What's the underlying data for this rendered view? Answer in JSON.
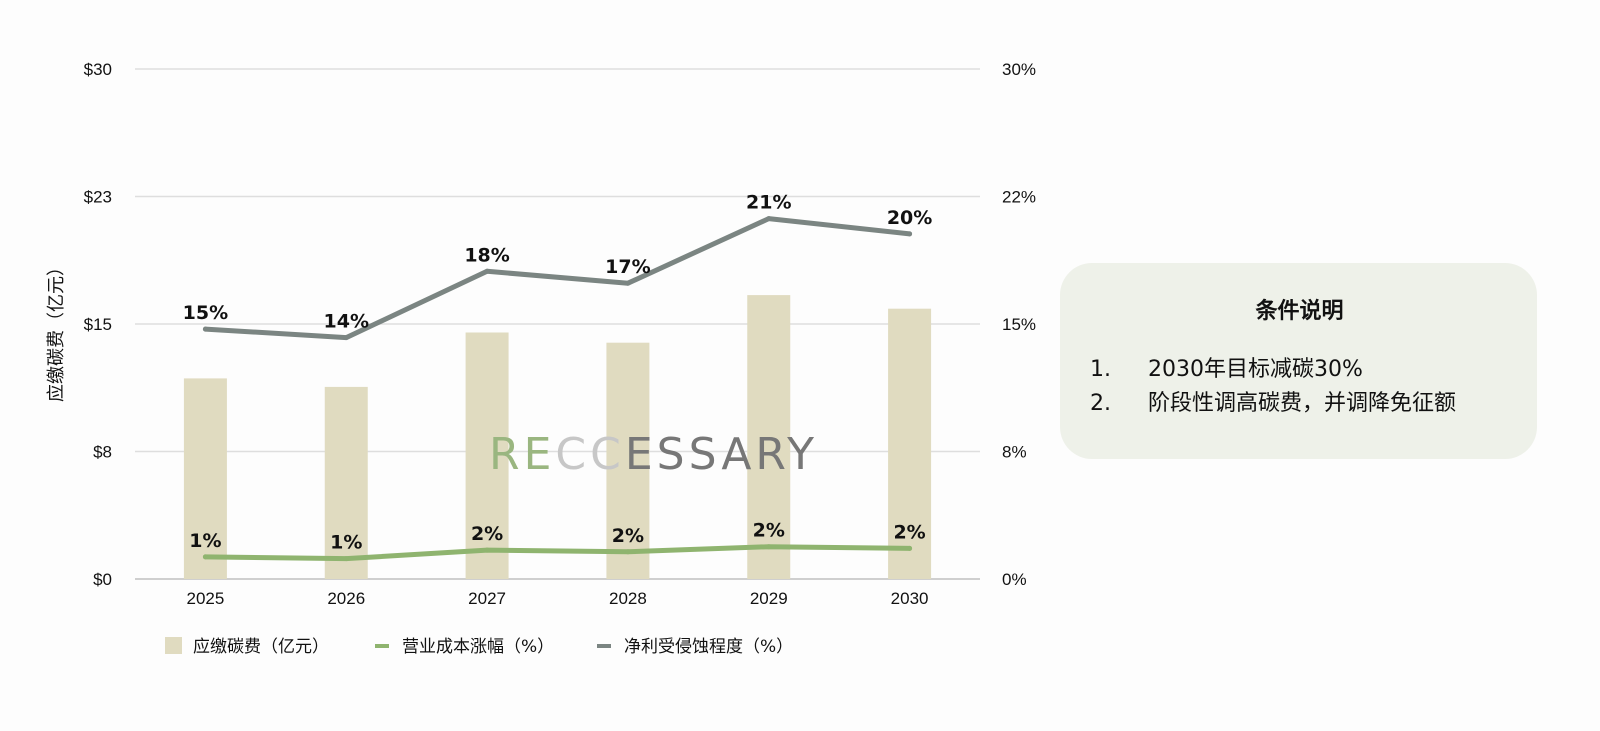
{
  "chart_data": {
    "type": "bar",
    "categories": [
      "2025",
      "2026",
      "2027",
      "2028",
      "2029",
      "2030"
    ],
    "bar_series": {
      "name": "应缴碳费（亿元）",
      "values": [
        11.8,
        11.3,
        14.5,
        13.9,
        16.7,
        15.9
      ],
      "color": "#e0dbc0"
    },
    "line_series": [
      {
        "name": "营业成本涨幅（%）",
        "values": [
          1.3,
          1.2,
          1.7,
          1.6,
          1.9,
          1.8
        ],
        "labels": [
          "1%",
          "1%",
          "2%",
          "2%",
          "2%",
          "2%"
        ],
        "color": "#8fb46f"
      },
      {
        "name": "净利受侵蚀程度（%）",
        "values": [
          14.7,
          14.2,
          18.1,
          17.4,
          21.2,
          20.3
        ],
        "labels": [
          "15%",
          "14%",
          "18%",
          "17%",
          "21%",
          "20%"
        ],
        "color": "#7b8582"
      }
    ],
    "ylabel": "应缴碳费（亿元）",
    "ylim": [
      0,
      30
    ],
    "y_ticks": [
      "$0",
      "$8",
      "$15",
      "$23",
      "$30"
    ],
    "y2lim": [
      0,
      30
    ],
    "y2_ticks": [
      "0%",
      "8%",
      "15%",
      "22%",
      "30%"
    ],
    "grid": true,
    "legend_position": "bottom"
  },
  "watermark": {
    "parts": [
      "R",
      "E",
      "CC",
      "ESSARY"
    ],
    "colors": [
      "#9ab680",
      "#9ab680",
      "#c7c7c7",
      "#777777"
    ]
  },
  "note": {
    "title": "条件说明",
    "items": [
      {
        "num": "1.",
        "text": "2030年目标减碳30%"
      },
      {
        "num": "2.",
        "text": "阶段性调高碳费，并调降免征额"
      }
    ]
  }
}
